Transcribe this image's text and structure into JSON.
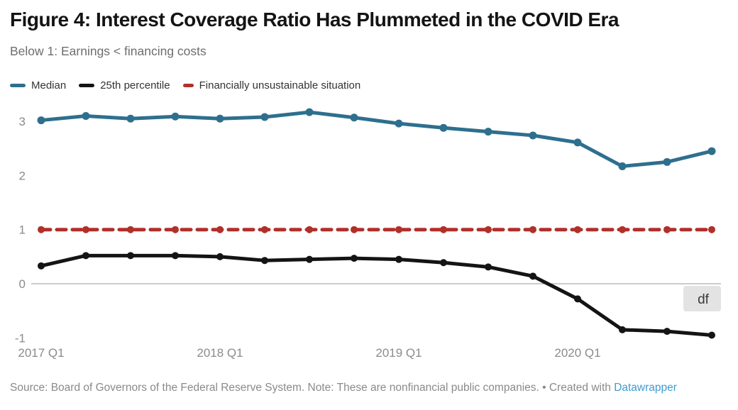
{
  "header": {
    "title": "Figure 4: Interest Coverage Ratio Has Plummeted in the COVID Era",
    "subtitle": "Below 1: Earnings < financing costs"
  },
  "legend": [
    {
      "label": "Median",
      "color": "#2e6f8e"
    },
    {
      "label": "25th percentile",
      "color": "#141414"
    },
    {
      "label": "Financially unsustainable situation",
      "color": "#b0302a"
    }
  ],
  "annotation": {
    "label": "df",
    "background": "#e3e3e3",
    "text_color": "#3a3a3a"
  },
  "footer": {
    "source": "Source: Board of Governors of the Federal Reserve System. Note: These are nonfinancial public companies. • Created with ",
    "link_label": "Datawrapper"
  },
  "colors": {
    "axis_text": "#8b8b8b",
    "zero_line": "#9a9a9a",
    "title": "#141414",
    "subtitle": "#6e6e6e",
    "footer": "#8a8a8a",
    "link": "#3d9bd1"
  },
  "chart_data": {
    "type": "line",
    "x": [
      "2017 Q1",
      "2017 Q2",
      "2017 Q3",
      "2017 Q4",
      "2018 Q1",
      "2018 Q2",
      "2018 Q3",
      "2018 Q4",
      "2019 Q1",
      "2019 Q2",
      "2019 Q3",
      "2019 Q4",
      "2020 Q1",
      "2020 Q2",
      "2020 Q3",
      "2020 Q4"
    ],
    "x_tick_labels": [
      "2017 Q1",
      "2018 Q1",
      "2019 Q1",
      "2020 Q1"
    ],
    "x_tick_indices": [
      0,
      4,
      8,
      12
    ],
    "yticks": [
      3,
      2,
      1,
      0,
      -1
    ],
    "ylim": [
      -1.1,
      3.4
    ],
    "grid": "zero-line-only",
    "legend_position": "top",
    "title": "Figure 4: Interest Coverage Ratio Has Plummeted in the COVID Era",
    "subtitle": "Below 1: Earnings < financing costs",
    "xlabel": "",
    "ylabel": "",
    "series": [
      {
        "name": "Median",
        "color": "#2e6f8e",
        "style": "solid",
        "values": [
          3.02,
          3.1,
          3.05,
          3.09,
          3.05,
          3.08,
          3.17,
          3.07,
          2.96,
          2.88,
          2.81,
          2.74,
          2.61,
          2.17,
          2.25,
          2.45
        ]
      },
      {
        "name": "25th percentile",
        "color": "#141414",
        "style": "solid",
        "values": [
          0.33,
          0.52,
          0.52,
          0.52,
          0.5,
          0.43,
          0.45,
          0.47,
          0.45,
          0.39,
          0.31,
          0.14,
          -0.28,
          -0.85,
          -0.88,
          -0.95
        ]
      },
      {
        "name": "Financially unsustainable situation",
        "color": "#b0302a",
        "style": "dashed",
        "values": [
          1,
          1,
          1,
          1,
          1,
          1,
          1,
          1,
          1,
          1,
          1,
          1,
          1,
          1,
          1,
          1
        ]
      }
    ]
  }
}
